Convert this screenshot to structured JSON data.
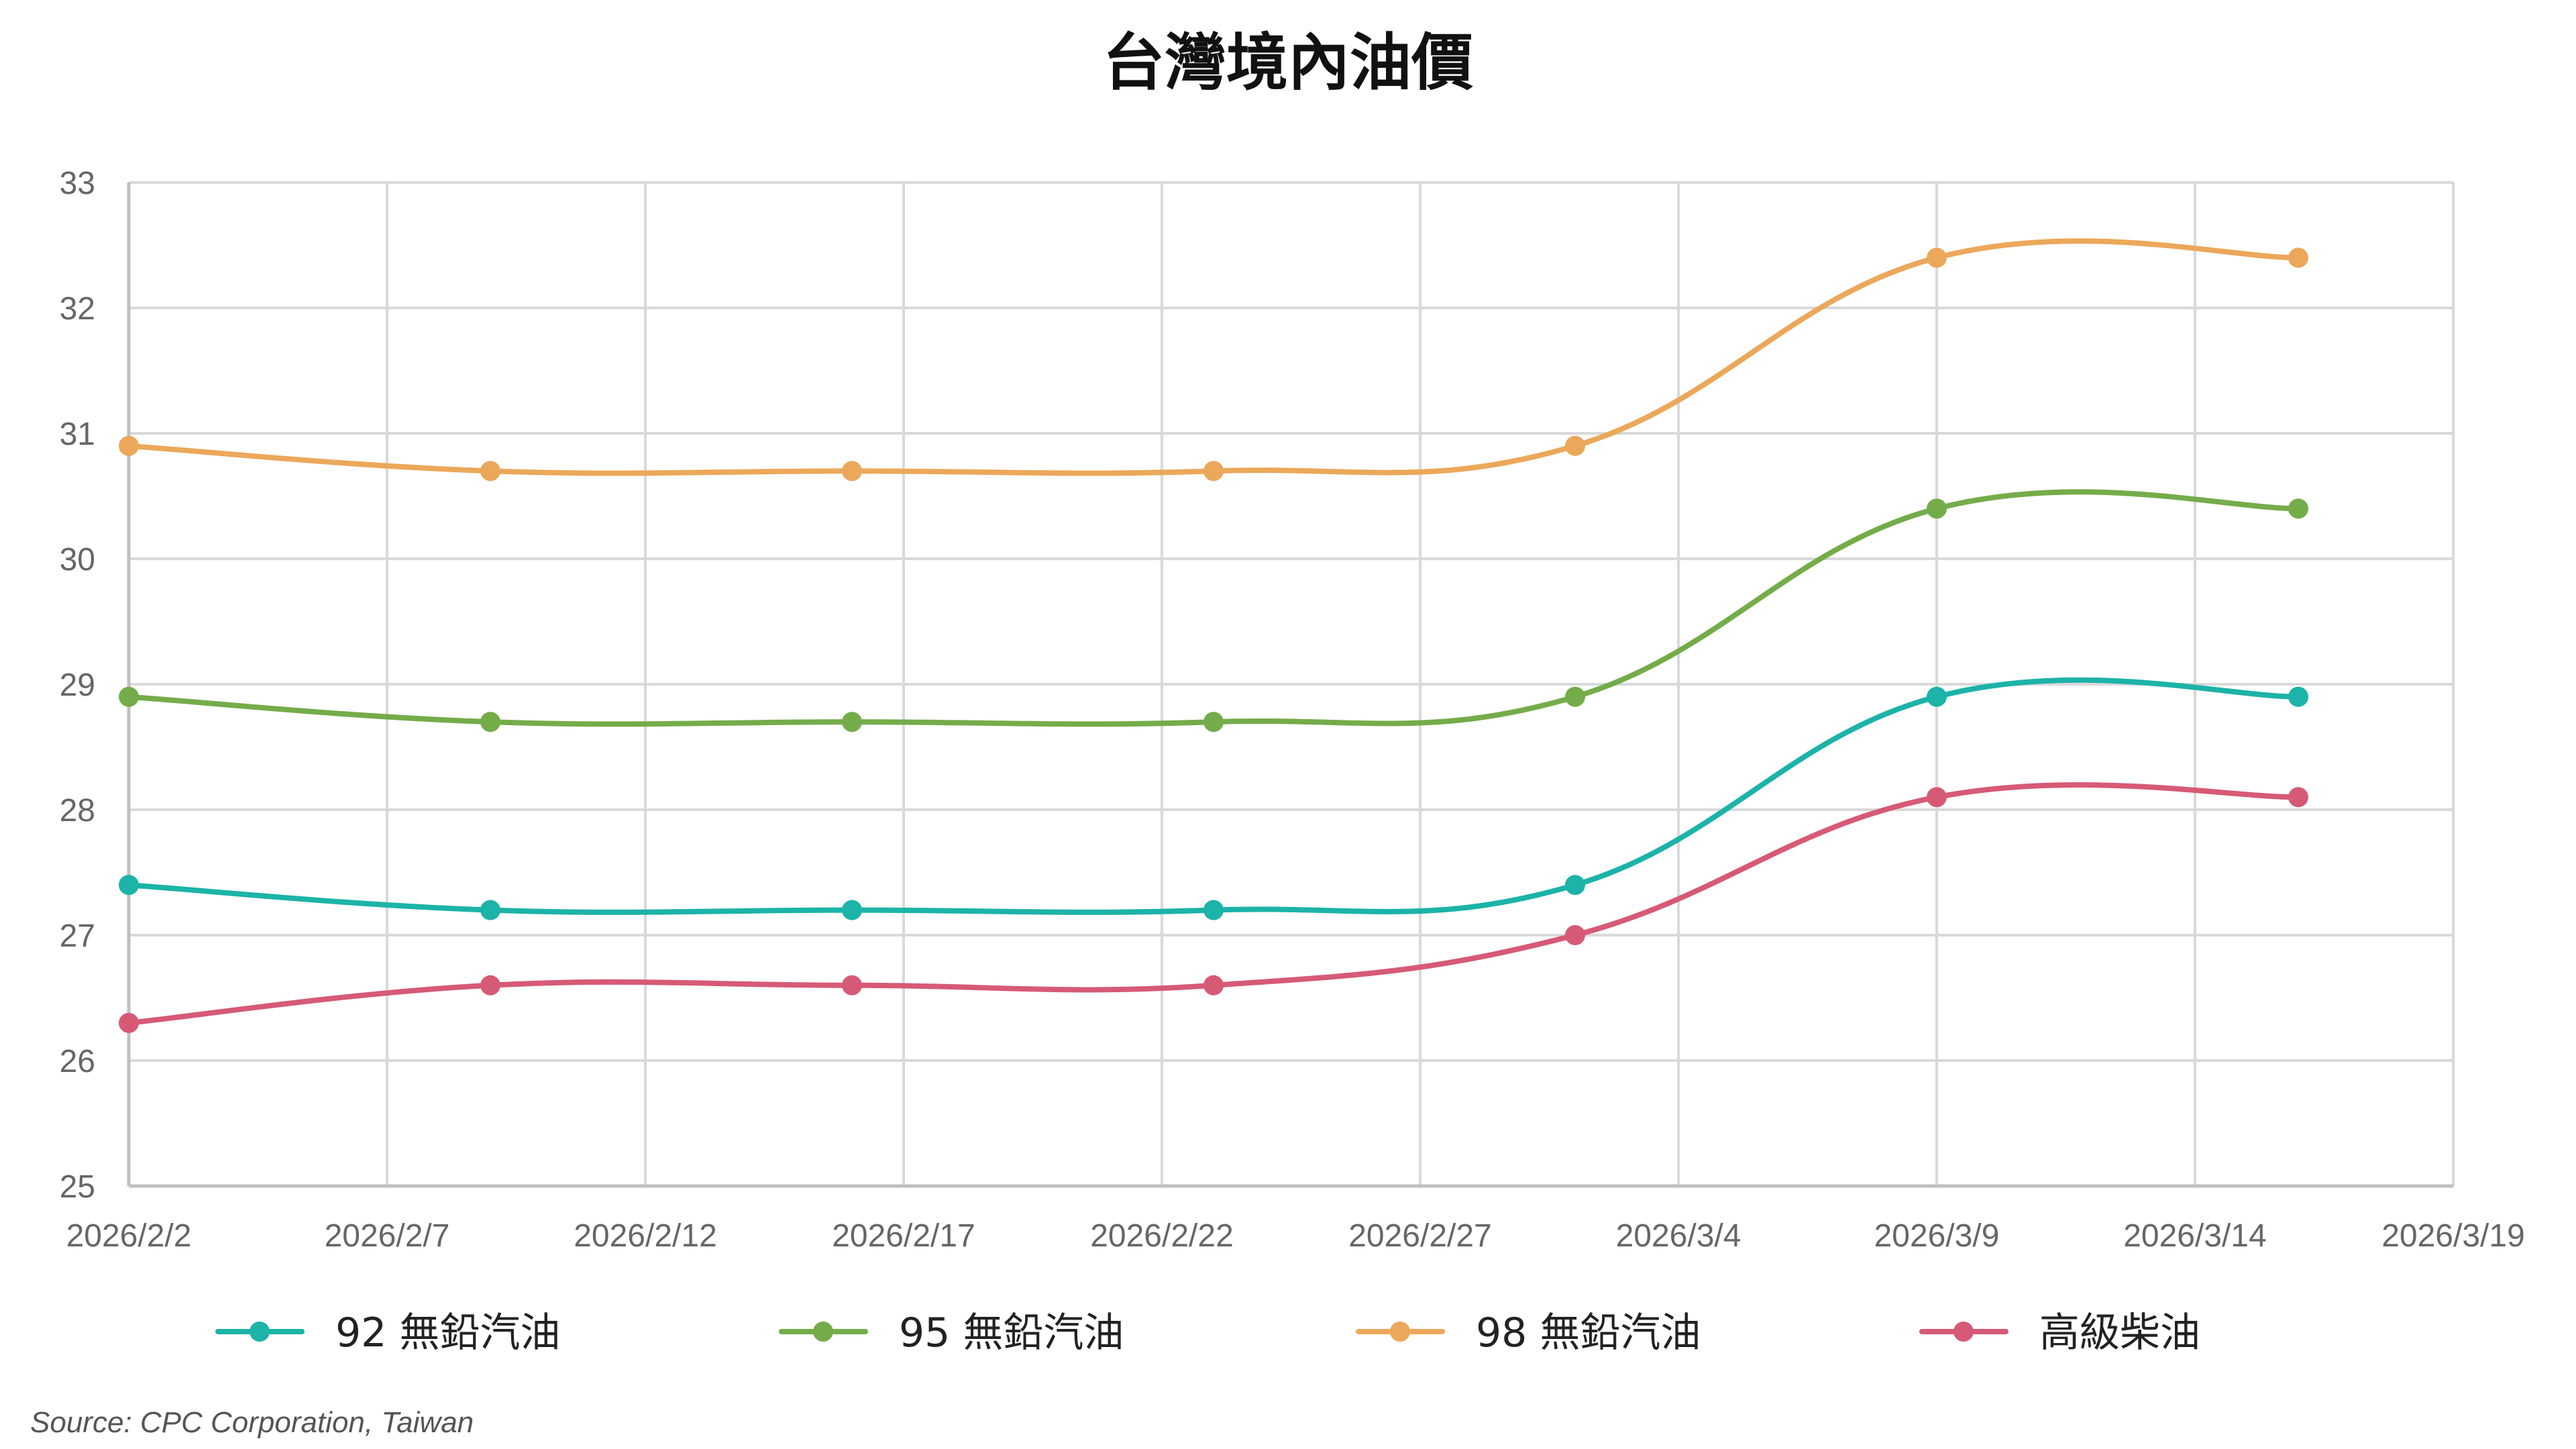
{
  "chart_data": {
    "type": "line",
    "title": "台灣境內油價",
    "xlabel": "",
    "ylabel": "",
    "x_type": "date",
    "xlim": [
      "2026-02-02",
      "2026-03-19"
    ],
    "ylim": [
      25,
      33
    ],
    "x_ticks": [
      "2026-02-02",
      "2026-02-07",
      "2026-02-12",
      "2026-02-17",
      "2026-02-22",
      "2026-02-27",
      "2026-03-04",
      "2026-03-09",
      "2026-03-14",
      "2026-03-19"
    ],
    "x_tick_labels": [
      "2026/2/2",
      "2026/2/7",
      "2026/2/12",
      "2026/2/17",
      "2026/2/22",
      "2026/2/27",
      "2026/3/4",
      "2026/3/9",
      "2026/3/14",
      "2026/3/19"
    ],
    "y_ticks": [
      25,
      26,
      27,
      28,
      29,
      30,
      31,
      32,
      33
    ],
    "grid": true,
    "smooth": true,
    "legend_position": "bottom",
    "x": [
      "2026-02-02",
      "2026-02-09",
      "2026-02-16",
      "2026-02-23",
      "2026-03-02",
      "2026-03-09",
      "2026-03-16"
    ],
    "series": [
      {
        "name": "92 無鉛汽油",
        "color": "#1cb3a8",
        "values": [
          27.4,
          27.2,
          27.2,
          27.2,
          27.4,
          28.9,
          28.9
        ]
      },
      {
        "name": "95 無鉛汽油",
        "color": "#74ac4a",
        "values": [
          28.9,
          28.7,
          28.7,
          28.7,
          28.9,
          30.4,
          30.4
        ]
      },
      {
        "name": "98 無鉛汽油",
        "color": "#eba85a",
        "values": [
          30.9,
          30.7,
          30.7,
          30.7,
          30.9,
          32.4,
          32.4
        ]
      },
      {
        "name": "高級柴油",
        "color": "#d65a76",
        "values": [
          26.3,
          26.6,
          26.6,
          26.6,
          27.0,
          28.1,
          28.1
        ]
      }
    ],
    "source": "Source: CPC Corporation, Taiwan"
  }
}
